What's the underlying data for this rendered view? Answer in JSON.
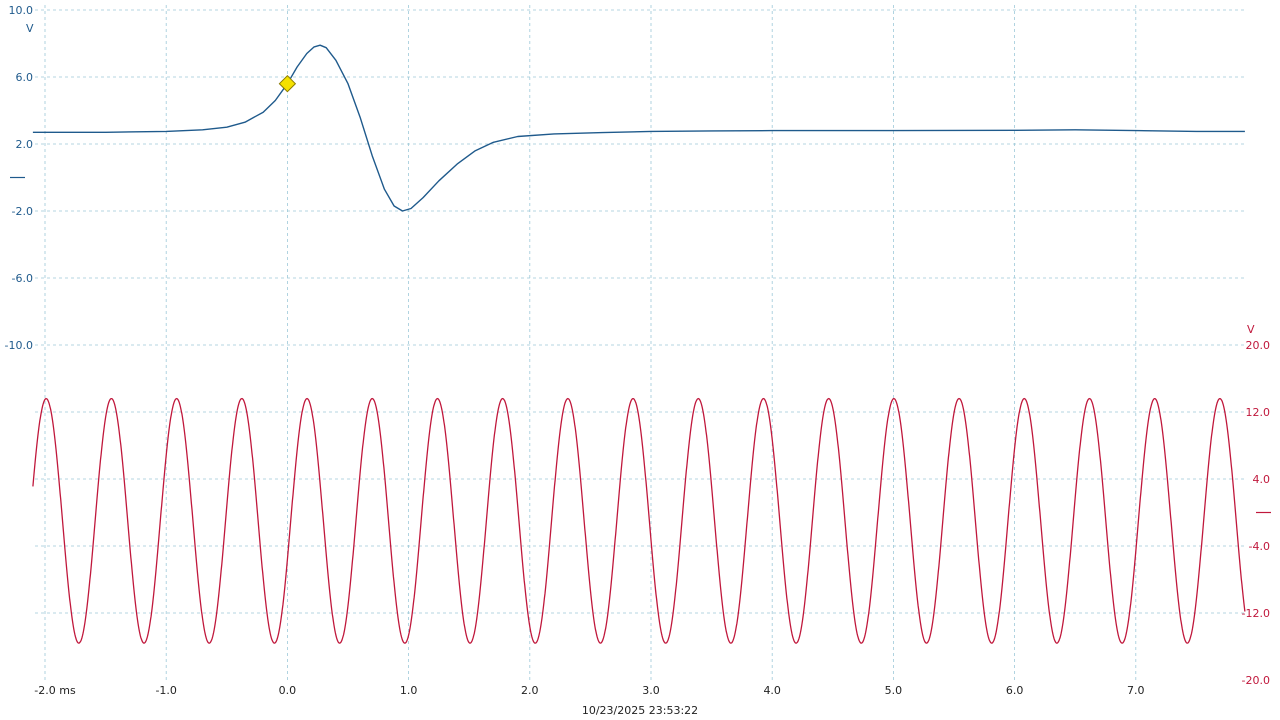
{
  "chart_data": {
    "type": "line",
    "timestamp": "10/23/2025 23:53:22",
    "x_axis": {
      "unit": "ms",
      "range": [
        -2.1,
        7.9
      ],
      "ticks": [
        -2.0,
        -1.0,
        0.0,
        1.0,
        2.0,
        3.0,
        4.0,
        5.0,
        6.0,
        7.0
      ],
      "tick_labels": [
        "-2.0 ms",
        "-1.0",
        "0.0",
        "1.0",
        "2.0",
        "3.0",
        "4.0",
        "5.0",
        "6.0",
        "7.0"
      ]
    },
    "trigger_marker": {
      "x": 0.0,
      "y": 5.6,
      "color": "#f5e100"
    },
    "channels": [
      {
        "id": "ch1",
        "color": "#1f5a8c",
        "unit": "V",
        "side": "left",
        "range": [
          -10.0,
          10.0
        ],
        "ticks": [
          10.0,
          6.0,
          2.0,
          -2.0,
          -6.0,
          -10.0
        ],
        "tick_labels": [
          "10.0",
          "6.0",
          "2.0",
          "-2.0",
          "-6.0",
          "-10.0"
        ],
        "baseline_marker": 0.0,
        "points": [
          [
            -2.1,
            2.7
          ],
          [
            -1.5,
            2.7
          ],
          [
            -1.0,
            2.75
          ],
          [
            -0.7,
            2.85
          ],
          [
            -0.5,
            3.0
          ],
          [
            -0.35,
            3.3
          ],
          [
            -0.2,
            3.9
          ],
          [
            -0.1,
            4.6
          ],
          [
            0.0,
            5.6
          ],
          [
            0.08,
            6.6
          ],
          [
            0.16,
            7.4
          ],
          [
            0.22,
            7.8
          ],
          [
            0.27,
            7.9
          ],
          [
            0.32,
            7.75
          ],
          [
            0.4,
            7.0
          ],
          [
            0.5,
            5.6
          ],
          [
            0.6,
            3.6
          ],
          [
            0.7,
            1.3
          ],
          [
            0.8,
            -0.7
          ],
          [
            0.88,
            -1.7
          ],
          [
            0.95,
            -2.0
          ],
          [
            1.02,
            -1.85
          ],
          [
            1.12,
            -1.2
          ],
          [
            1.25,
            -0.2
          ],
          [
            1.4,
            0.8
          ],
          [
            1.55,
            1.6
          ],
          [
            1.7,
            2.1
          ],
          [
            1.9,
            2.45
          ],
          [
            2.2,
            2.6
          ],
          [
            2.6,
            2.68
          ],
          [
            3.0,
            2.75
          ],
          [
            3.5,
            2.78
          ],
          [
            4.0,
            2.8
          ],
          [
            5.0,
            2.8
          ],
          [
            6.0,
            2.82
          ],
          [
            6.5,
            2.85
          ],
          [
            7.0,
            2.8
          ],
          [
            7.5,
            2.75
          ],
          [
            7.9,
            2.75
          ]
        ]
      },
      {
        "id": "ch2",
        "color": "#c0183c",
        "unit": "V",
        "side": "right",
        "range": [
          -20.0,
          20.0
        ],
        "ticks": [
          20.0,
          12.0,
          4.0,
          -4.0,
          -12.0,
          -20.0
        ],
        "tick_labels": [
          "20.0",
          "12.0",
          "4.0",
          "-4.0",
          "-12.0",
          "-20.0"
        ],
        "baseline_marker": 0.0,
        "signal": {
          "waveform": "sine",
          "period_ms": 0.538,
          "first_peak_ms": -1.99,
          "offset_v": -1.0,
          "amplitude_v": 14.6,
          "start_ms": -2.1,
          "end_ms": 7.9
        }
      }
    ]
  }
}
